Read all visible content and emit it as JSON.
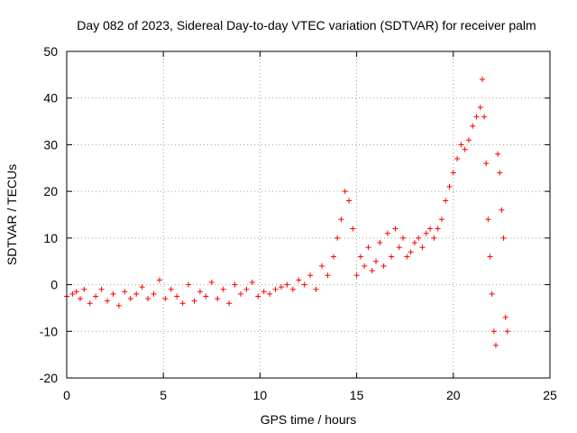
{
  "chart_data": {
    "type": "scatter",
    "title": "Day 082 of 2023, Sidereal Day-to-day VTEC variation (SDTVAR) for receiver palm",
    "xlabel": "GPS time / hours",
    "ylabel": "SDTVAR / TECUs",
    "xlim": [
      0,
      25
    ],
    "ylim": [
      -20,
      50
    ],
    "xticks": [
      "0",
      "5",
      "10",
      "15",
      "20",
      "25"
    ],
    "yticks": [
      "-20",
      "-10",
      "0",
      "10",
      "20",
      "30",
      "40",
      "50"
    ],
    "grid": true,
    "marker": "plus",
    "color": "#ff0000",
    "series": [
      {
        "name": "SDTVAR",
        "x": [
          0.0,
          0.3,
          0.5,
          0.7,
          0.9,
          1.2,
          1.5,
          1.8,
          2.1,
          2.4,
          2.7,
          3.0,
          3.3,
          3.6,
          3.9,
          4.2,
          4.5,
          4.8,
          5.1,
          5.4,
          5.7,
          6.0,
          6.3,
          6.6,
          6.9,
          7.2,
          7.5,
          7.8,
          8.1,
          8.4,
          8.7,
          9.0,
          9.3,
          9.6,
          9.9,
          10.2,
          10.5,
          10.8,
          11.1,
          11.4,
          11.7,
          12.0,
          12.3,
          12.6,
          12.9,
          13.2,
          13.5,
          13.8,
          14.0,
          14.2,
          14.4,
          14.6,
          14.8,
          15.0,
          15.2,
          15.4,
          15.6,
          15.8,
          16.0,
          16.2,
          16.4,
          16.6,
          16.8,
          17.0,
          17.2,
          17.4,
          17.6,
          17.8,
          18.0,
          18.2,
          18.4,
          18.6,
          18.8,
          19.0,
          19.2,
          19.4,
          19.6,
          19.8,
          20.0,
          20.2,
          20.4,
          20.6,
          20.8,
          21.0,
          21.2,
          21.4,
          21.5,
          21.6,
          21.7,
          21.8,
          21.9,
          22.0,
          22.1,
          22.2,
          22.3,
          22.4,
          22.5,
          22.6,
          22.7,
          22.8
        ],
        "y": [
          -2.5,
          -2.0,
          -1.5,
          -3.0,
          -1.0,
          -4.0,
          -2.5,
          -1.0,
          -3.5,
          -2.0,
          -4.5,
          -1.5,
          -3.0,
          -2.0,
          -0.5,
          -3.0,
          -2.0,
          1.0,
          -3.0,
          -1.0,
          -2.5,
          -4.0,
          0.0,
          -3.5,
          -1.5,
          -2.5,
          0.5,
          -3.0,
          -1.0,
          -4.0,
          0.0,
          -2.0,
          -1.0,
          0.5,
          -2.5,
          -1.5,
          -2.0,
          -1.0,
          -0.5,
          0.0,
          -1.0,
          1.0,
          0.0,
          2.0,
          -1.0,
          4.0,
          2.0,
          6.0,
          10.0,
          14.0,
          20.0,
          18.0,
          12.0,
          2.0,
          6.0,
          4.0,
          8.0,
          3.0,
          5.0,
          9.0,
          4.0,
          11.0,
          6.0,
          12.0,
          8.0,
          10.0,
          6.0,
          7.0,
          9.0,
          10.0,
          8.0,
          11.0,
          12.0,
          10.0,
          12.0,
          14.0,
          18.0,
          21.0,
          24.0,
          27.0,
          30.0,
          29.0,
          31.0,
          34.0,
          36.0,
          38.0,
          44.0,
          36.0,
          26.0,
          14.0,
          6.0,
          -2.0,
          -10.0,
          -13.0,
          28.0,
          24.0,
          16.0,
          10.0,
          -7.0,
          -10.0
        ]
      }
    ]
  }
}
